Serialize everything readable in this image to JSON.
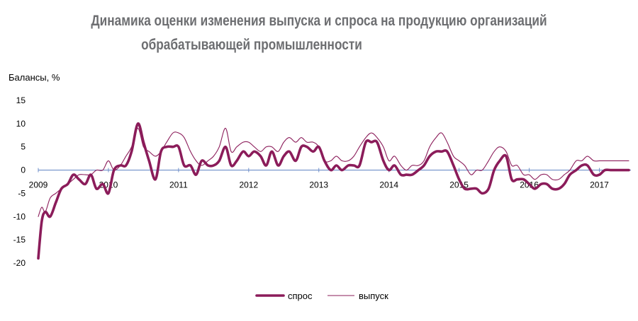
{
  "chart_data": {
    "type": "line",
    "title_line1": "Динамика оценки изменения выпуска и спроса на продукцию организаций",
    "title_line2": "обрабатывающей промышленности",
    "ylabel": "Балансы, %",
    "ylim": [
      -20,
      15
    ],
    "yticks": [
      15,
      10,
      5,
      0,
      -5,
      -10,
      -15,
      -20
    ],
    "xlim": [
      2009.0,
      2017.45
    ],
    "xticks": [
      "2009",
      "2010",
      "2011",
      "2012",
      "2013",
      "2014",
      "2015",
      "2016",
      "2017"
    ],
    "colors": {
      "demand": "#8b1c5a",
      "output": "#8b1c5a",
      "zero_line": "#6f8fc9"
    },
    "series": [
      {
        "name": "спрос",
        "key": "demand",
        "style": "thick",
        "x": [
          2009.0,
          2009.05,
          2009.1,
          2009.17,
          2009.25,
          2009.33,
          2009.42,
          2009.5,
          2009.58,
          2009.67,
          2009.75,
          2009.83,
          2009.92,
          2010.0,
          2010.08,
          2010.17,
          2010.25,
          2010.33,
          2010.42,
          2010.5,
          2010.58,
          2010.67,
          2010.75,
          2010.83,
          2010.92,
          2011.0,
          2011.08,
          2011.17,
          2011.25,
          2011.33,
          2011.42,
          2011.5,
          2011.58,
          2011.67,
          2011.75,
          2011.83,
          2011.92,
          2012.0,
          2012.08,
          2012.17,
          2012.25,
          2012.33,
          2012.42,
          2012.5,
          2012.58,
          2012.67,
          2012.75,
          2012.83,
          2012.92,
          2013.0,
          2013.08,
          2013.17,
          2013.25,
          2013.33,
          2013.42,
          2013.5,
          2013.58,
          2013.67,
          2013.75,
          2013.83,
          2013.92,
          2014.0,
          2014.08,
          2014.17,
          2014.25,
          2014.33,
          2014.42,
          2014.5,
          2014.58,
          2014.67,
          2014.75,
          2014.83,
          2014.92,
          2015.0,
          2015.08,
          2015.17,
          2015.25,
          2015.33,
          2015.42,
          2015.5,
          2015.58,
          2015.67,
          2015.75,
          2015.83,
          2015.92,
          2016.0,
          2016.08,
          2016.17,
          2016.25,
          2016.33,
          2016.42,
          2016.5,
          2016.58,
          2016.67,
          2016.75,
          2016.83,
          2016.92,
          2017.0,
          2017.08,
          2017.17,
          2017.25,
          2017.33,
          2017.42
        ],
        "values": [
          -19,
          -11,
          -9,
          -10,
          -7,
          -4,
          -3,
          -1,
          -2,
          -3,
          -1,
          -4,
          -3,
          -5,
          0,
          1,
          1,
          4,
          10,
          6,
          2,
          -2,
          4,
          5,
          5,
          5,
          1,
          1,
          -1,
          2,
          1,
          1,
          2,
          5,
          1,
          2,
          4,
          3,
          4,
          3,
          1,
          4,
          1,
          3,
          4,
          2,
          5,
          5,
          4,
          5,
          2,
          0,
          1,
          0,
          1,
          1,
          1,
          6,
          6,
          6,
          2,
          0,
          1,
          -1,
          -1,
          -1,
          0,
          1,
          3,
          4,
          4,
          4,
          1,
          -2,
          -4,
          -4,
          -4,
          -5,
          -4,
          0,
          2,
          3,
          -2,
          -2,
          -2,
          -3,
          -4,
          -3,
          -3,
          -4,
          -4,
          -3,
          -1,
          0,
          1,
          1,
          -1,
          -1,
          0,
          0,
          0,
          0,
          0
        ],
        "x_note": "x values for demand are the first 103 entries of the shared monthly grid"
      },
      {
        "name": "выпуск",
        "key": "output",
        "style": "thin",
        "x": [
          2009.0,
          2009.05,
          2009.1,
          2009.17,
          2009.25,
          2009.33,
          2009.42,
          2009.5,
          2009.58,
          2009.67,
          2009.75,
          2009.83,
          2009.92,
          2010.0,
          2010.08,
          2010.17,
          2010.25,
          2010.33,
          2010.42,
          2010.5,
          2010.58,
          2010.67,
          2010.75,
          2010.83,
          2010.92,
          2011.0,
          2011.08,
          2011.17,
          2011.25,
          2011.33,
          2011.42,
          2011.5,
          2011.58,
          2011.67,
          2011.75,
          2011.83,
          2011.92,
          2012.0,
          2012.08,
          2012.17,
          2012.25,
          2012.33,
          2012.42,
          2012.5,
          2012.58,
          2012.67,
          2012.75,
          2012.83,
          2012.92,
          2013.0,
          2013.08,
          2013.17,
          2013.25,
          2013.33,
          2013.42,
          2013.5,
          2013.58,
          2013.67,
          2013.75,
          2013.83,
          2013.92,
          2014.0,
          2014.08,
          2014.17,
          2014.25,
          2014.33,
          2014.42,
          2014.5,
          2014.58,
          2014.67,
          2014.75,
          2014.83,
          2014.92,
          2015.0,
          2015.08,
          2015.17,
          2015.25,
          2015.33,
          2015.42,
          2015.5,
          2015.58,
          2015.67,
          2015.75,
          2015.83,
          2015.92,
          2016.0,
          2016.08,
          2016.17,
          2016.25,
          2016.33,
          2016.42,
          2016.5,
          2016.58,
          2016.67,
          2016.75,
          2016.83,
          2016.92,
          2017.0,
          2017.08,
          2017.17,
          2017.25,
          2017.33,
          2017.42
        ],
        "values": [
          -10,
          -8,
          -9,
          -6,
          -5,
          -4,
          -3,
          -2,
          -1,
          -1,
          -1,
          0,
          0,
          2,
          0,
          1,
          3,
          5,
          9,
          5,
          4,
          3,
          4,
          6,
          8,
          8,
          7,
          4,
          2,
          1,
          2,
          3,
          5,
          9,
          4,
          5,
          6,
          6,
          5,
          4,
          5,
          5,
          4,
          6,
          7,
          6,
          7,
          6,
          6,
          5,
          2,
          2,
          3,
          2,
          2,
          3,
          5,
          7,
          8,
          7,
          5,
          2,
          3,
          1,
          0,
          1,
          1,
          2,
          5,
          7,
          8,
          6,
          3,
          2,
          1,
          -1,
          0,
          0,
          2,
          4,
          5,
          4,
          1,
          1,
          -1,
          -1,
          -2,
          -1,
          -1,
          -2,
          -2,
          -1,
          0,
          2,
          2,
          3,
          2,
          2,
          2,
          2,
          2,
          2,
          2
        ]
      }
    ],
    "legend": [
      "спрос",
      "выпуск"
    ],
    "legend_position": "bottom-center"
  }
}
